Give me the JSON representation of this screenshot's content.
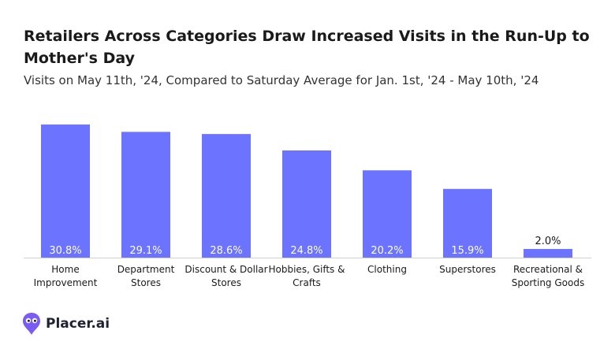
{
  "brand": {
    "name": "Placer.ai",
    "color": "#7a5cf5"
  },
  "chart_data": {
    "type": "bar",
    "title": "Retailers Across Categories Draw Increased Visits in the Run-Up to Mother's Day",
    "subtitle": "Visits on May 11th, '24, Compared to Saturday Average for Jan. 1st, '24 - May 10th, '24",
    "xlabel": "",
    "ylabel": "",
    "categories": [
      [
        "Home",
        "Improvement"
      ],
      [
        "Department",
        "Stores"
      ],
      [
        "Discount & Dollar",
        "Stores"
      ],
      [
        "Hobbies, Gifts &",
        "Crafts"
      ],
      [
        "Clothing"
      ],
      [
        "Superstores"
      ],
      [
        "Recreational &",
        "Sporting Goods"
      ]
    ],
    "values": [
      30.8,
      29.1,
      28.6,
      24.8,
      20.2,
      15.9,
      2.0
    ],
    "labels": [
      "30.8%",
      "29.1%",
      "28.6%",
      "24.8%",
      "20.2%",
      "15.9%",
      "2.0%"
    ],
    "ylim": [
      0,
      33
    ],
    "bar_color": "#6b73ff",
    "grid": false,
    "legend": "none"
  }
}
